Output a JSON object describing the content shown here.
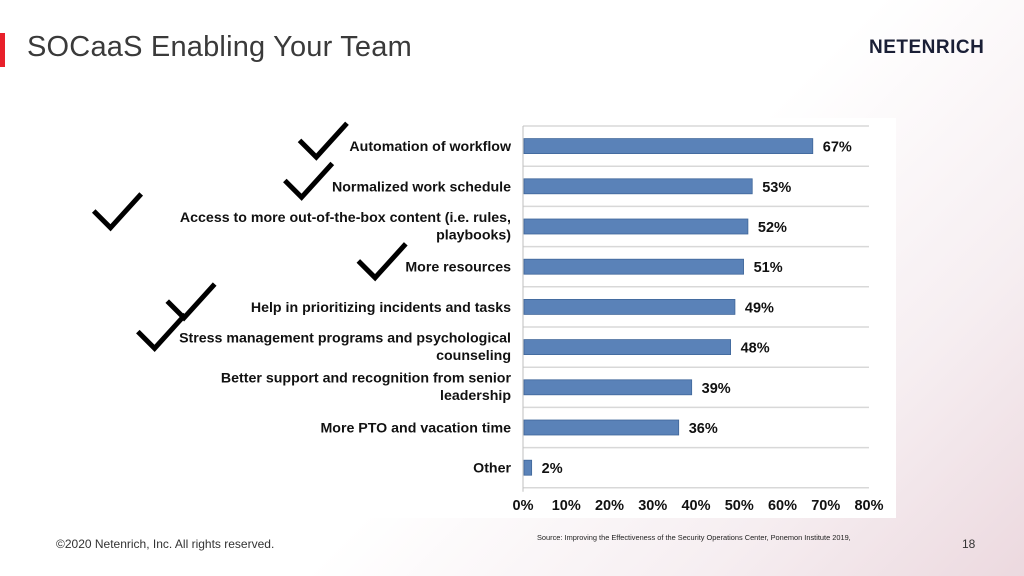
{
  "slide": {
    "title": "SOCaaS Enabling Your Team",
    "logo": "NETENRICH",
    "copyright": "©2020 Netenrich, Inc. All rights reserved.",
    "source": "Source: Improving the Effectiveness of  the Security Operations Center, Ponemon Institute 2019,",
    "page_number": "18",
    "accent_color": "#e8202a"
  },
  "chart_data": {
    "type": "bar",
    "orientation": "horizontal",
    "categories": [
      [
        "Automation of workflow"
      ],
      [
        "Normalized work schedule"
      ],
      [
        "Access to more out-of-the-box content (i.e. rules,",
        "playbooks)"
      ],
      [
        "More resources"
      ],
      [
        "Help in prioritizing incidents and tasks"
      ],
      [
        "Stress management programs and psychological",
        "counseling"
      ],
      [
        "Better support and recognition from senior",
        "leadership"
      ],
      [
        "More PTO and vacation time"
      ],
      [
        "Other"
      ]
    ],
    "values": [
      67,
      53,
      52,
      51,
      49,
      48,
      39,
      36,
      2
    ],
    "value_labels": [
      "67%",
      "53%",
      "52%",
      "51%",
      "49%",
      "48%",
      "39%",
      "36%",
      "2%"
    ],
    "checked": [
      true,
      true,
      true,
      true,
      true,
      true,
      false,
      false,
      false
    ],
    "xlim": [
      0,
      80
    ],
    "xticks": [
      "0%",
      "10%",
      "20%",
      "30%",
      "40%",
      "50%",
      "60%",
      "70%",
      "80%"
    ],
    "grid": true,
    "bar_color": "#5a82b8",
    "check_icon": "checkmark-icon"
  }
}
